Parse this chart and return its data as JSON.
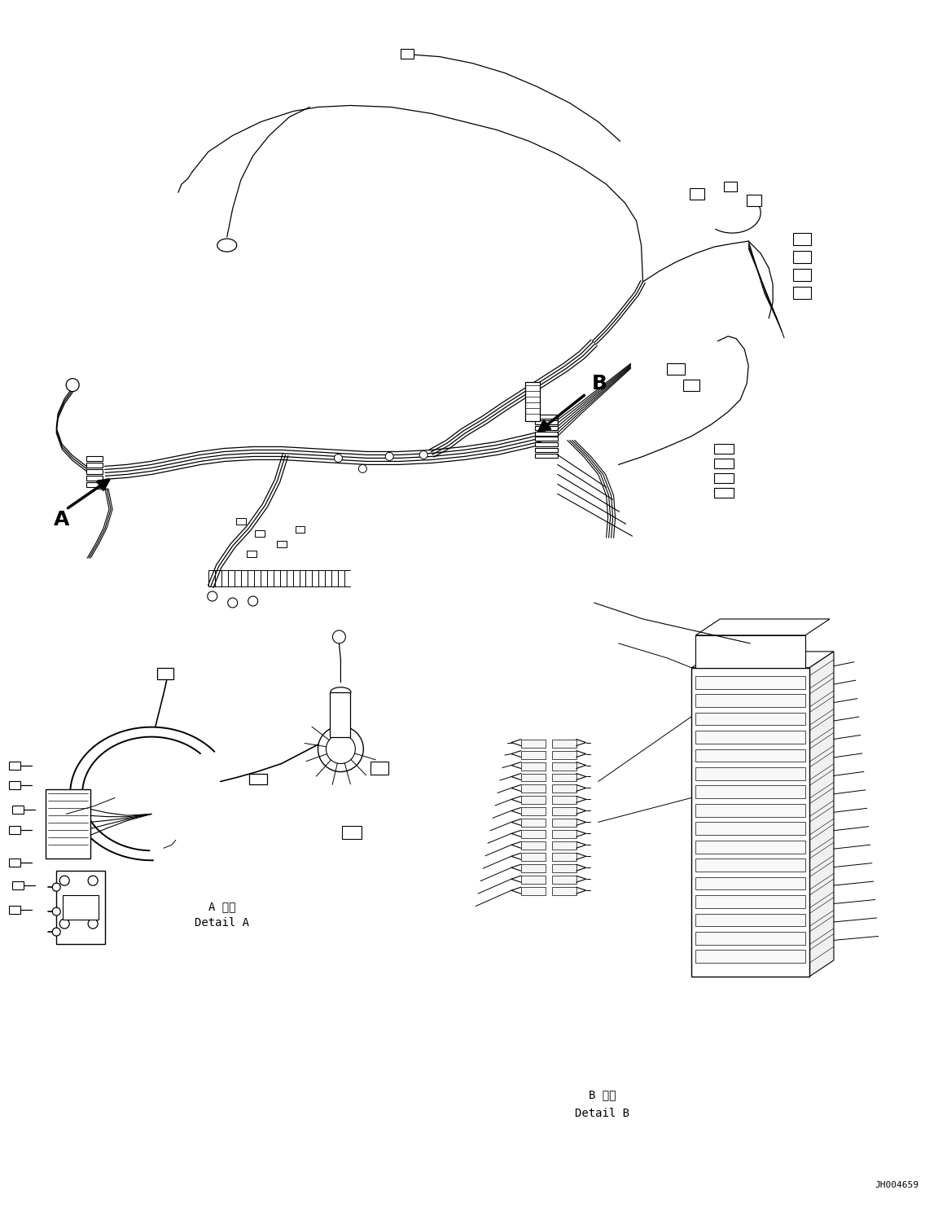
{
  "background_color": "#ffffff",
  "fig_width": 11.63,
  "fig_height": 14.88,
  "dpi": 100,
  "title_code": "JH004659",
  "label_A": "A",
  "label_B": "B",
  "detail_A_jp": "A 詳細",
  "detail_A_en": "Detail A",
  "detail_B_jp": "B 詳細",
  "detail_B_en": "Detail B",
  "line_color": "#000000",
  "lw_wire": 1.0,
  "lw_thick": 1.5,
  "lw_thin": 0.6,
  "note_fontsize": 9,
  "label_fontsize": 16
}
